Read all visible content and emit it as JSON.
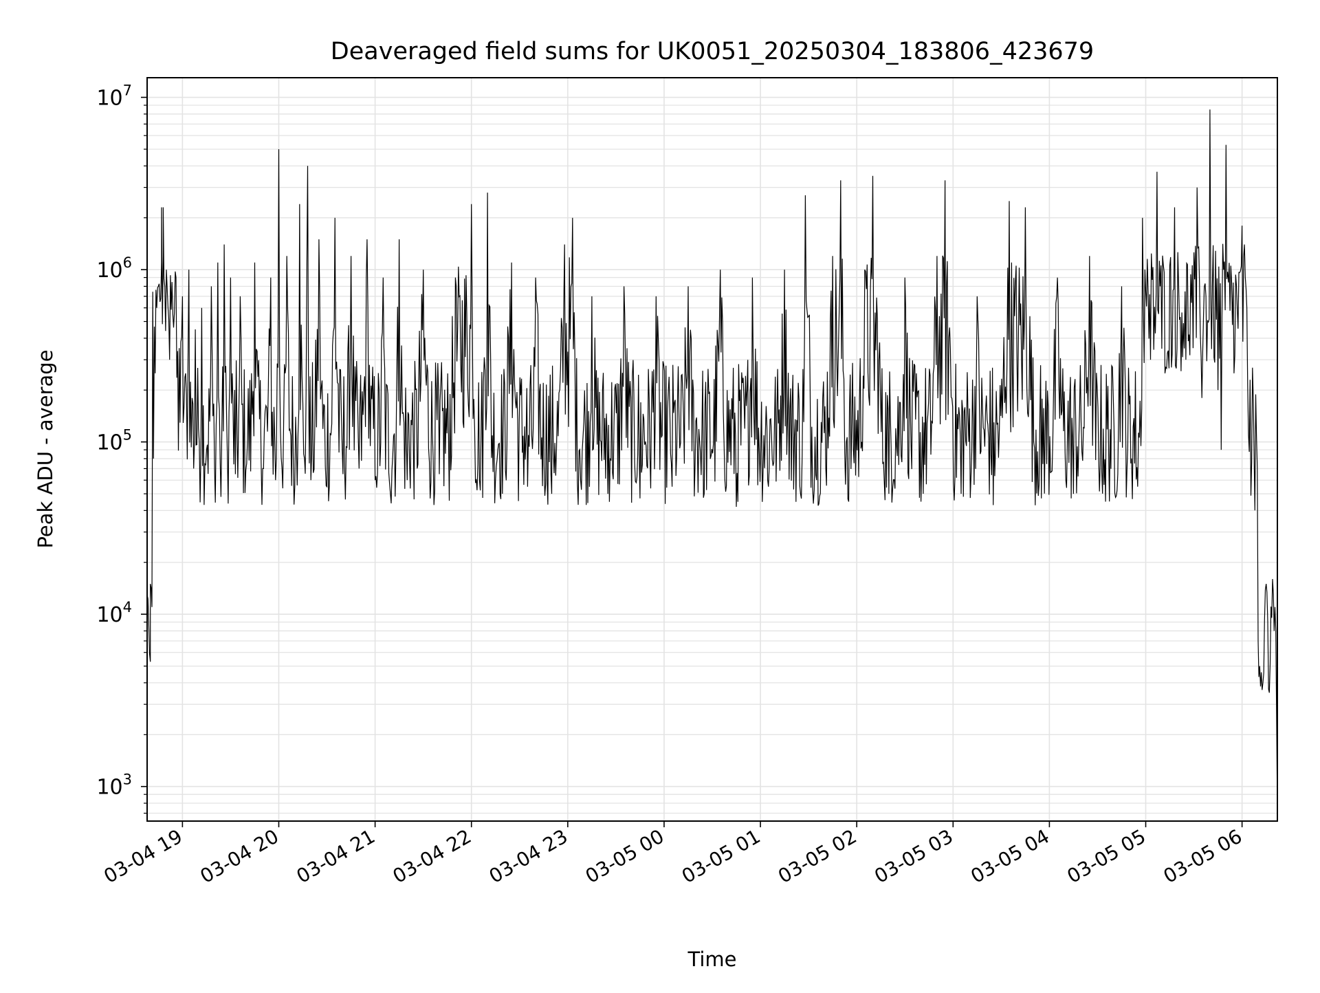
{
  "chart_data": {
    "type": "line",
    "title": "Deaveraged field sums for UK0051_20250304_183806_423679",
    "xlabel": "Time",
    "ylabel": "Peak ADU - average",
    "yscale": "log",
    "ylim": [
      630,
      13000000
    ],
    "xlim": [
      "2025-03-04 18:38",
      "2025-03-05 06:22"
    ],
    "grid": true,
    "legend": "none",
    "line_color": "#000000",
    "grid_color": "#e3e3e3",
    "x_ticks": [
      {
        "t": "2025-03-04 19:00",
        "label": "03-04 19"
      },
      {
        "t": "2025-03-04 20:00",
        "label": "03-04 20"
      },
      {
        "t": "2025-03-04 21:00",
        "label": "03-04 21"
      },
      {
        "t": "2025-03-04 22:00",
        "label": "03-04 22"
      },
      {
        "t": "2025-03-04 23:00",
        "label": "03-04 23"
      },
      {
        "t": "2025-03-05 00:00",
        "label": "03-05 00"
      },
      {
        "t": "2025-03-05 01:00",
        "label": "03-05 01"
      },
      {
        "t": "2025-03-05 02:00",
        "label": "03-05 02"
      },
      {
        "t": "2025-03-05 03:00",
        "label": "03-05 03"
      },
      {
        "t": "2025-03-05 04:00",
        "label": "03-05 04"
      },
      {
        "t": "2025-03-05 05:00",
        "label": "03-05 05"
      },
      {
        "t": "2025-03-05 06:00",
        "label": "03-05 06"
      }
    ],
    "y_ticks": [
      {
        "value": 1000,
        "label": "10",
        "exp": "3"
      },
      {
        "value": 10000,
        "label": "10",
        "exp": "4"
      },
      {
        "value": 100000,
        "label": "10",
        "exp": "5"
      },
      {
        "value": 1000000,
        "label": "10",
        "exp": "6"
      },
      {
        "value": 10000000,
        "label": "10",
        "exp": "7"
      }
    ],
    "series": [
      {
        "values": [
          [
            "2025-03-04 18:38",
            13000
          ],
          [
            "2025-03-04 18:39",
            9000
          ],
          [
            "2025-03-04 18:40",
            5300
          ],
          [
            "2025-03-04 18:40",
            15000
          ],
          [
            "2025-03-04 18:41",
            11000
          ],
          [
            "2025-03-04 18:42",
            80000
          ],
          [
            "2025-03-04 18:43",
            250000
          ],
          [
            "2025-03-04 18:44",
            600000
          ],
          [
            "2025-03-04 18:45",
            800000
          ],
          [
            "2025-03-04 18:46",
            650000
          ],
          [
            "2025-03-04 18:47",
            1100000
          ],
          [
            "2025-03-04 18:47",
            2300000
          ],
          [
            "2025-03-04 18:48",
            1200000
          ],
          [
            "2025-03-04 18:48",
            2300000
          ],
          [
            "2025-03-04 18:49",
            800000
          ],
          [
            "2025-03-04 18:50",
            1000000
          ],
          [
            "2025-03-04 18:51",
            600000
          ],
          [
            "2025-03-04 18:52",
            300000
          ],
          [
            "2025-03-04 18:54",
            550000
          ],
          [
            "2025-03-04 18:56",
            900000
          ],
          [
            "2025-03-04 18:58",
            350000
          ],
          [
            "2025-03-04 19:00",
            700000
          ],
          [
            "2025-03-04 19:02",
            250000
          ],
          [
            "2025-03-04 19:04",
            1000000
          ],
          [
            "2025-03-04 19:06",
            180000
          ],
          [
            "2025-03-04 19:08",
            450000
          ],
          [
            "2025-03-04 19:10",
            120000
          ],
          [
            "2025-03-04 19:12",
            600000
          ],
          [
            "2025-03-04 19:15",
            90000
          ],
          [
            "2025-03-04 19:18",
            800000
          ],
          [
            "2025-03-04 19:20",
            70000
          ],
          [
            "2025-03-04 19:22",
            1100000
          ],
          [
            "2025-03-04 19:24",
            48000
          ],
          [
            "2025-03-04 19:26",
            1400000
          ],
          [
            "2025-03-04 19:28",
            80000
          ],
          [
            "2025-03-04 19:30",
            900000
          ],
          [
            "2025-03-04 19:33",
            65000
          ],
          [
            "2025-03-04 19:36",
            700000
          ],
          [
            "2025-03-04 19:40",
            75000
          ],
          [
            "2025-03-04 19:45",
            1100000
          ],
          [
            "2025-03-04 19:50",
            70000
          ],
          [
            "2025-03-04 19:55",
            900000
          ],
          [
            "2025-03-04 19:58",
            60000
          ],
          [
            "2025-03-04 20:00",
            5000000
          ],
          [
            "2025-03-04 20:02",
            70000
          ],
          [
            "2025-03-04 20:05",
            1200000
          ],
          [
            "2025-03-04 20:10",
            55000
          ],
          [
            "2025-03-04 20:13",
            2400000
          ],
          [
            "2025-03-04 20:16",
            80000
          ],
          [
            "2025-03-04 20:18",
            4000000
          ],
          [
            "2025-03-04 20:20",
            60000
          ],
          [
            "2025-03-04 20:25",
            1500000
          ],
          [
            "2025-03-04 20:30",
            55000
          ],
          [
            "2025-03-04 20:35",
            2000000
          ],
          [
            "2025-03-04 20:40",
            65000
          ],
          [
            "2025-03-04 20:45",
            1200000
          ],
          [
            "2025-03-04 20:50",
            70000
          ],
          [
            "2025-03-04 20:55",
            1500000
          ],
          [
            "2025-03-04 21:00",
            60000
          ],
          [
            "2025-03-04 21:05",
            900000
          ],
          [
            "2025-03-04 21:10",
            44000
          ],
          [
            "2025-03-04 21:15",
            1500000
          ],
          [
            "2025-03-04 21:20",
            60000
          ],
          [
            "2025-03-04 21:30",
            1000000
          ],
          [
            "2025-03-04 21:40",
            65000
          ],
          [
            "2025-03-04 21:50",
            900000
          ],
          [
            "2025-03-04 22:00",
            2400000
          ],
          [
            "2025-03-04 22:05",
            60000
          ],
          [
            "2025-03-04 22:10",
            2800000
          ],
          [
            "2025-03-04 22:15",
            60000
          ],
          [
            "2025-03-04 22:25",
            1100000
          ],
          [
            "2025-03-04 22:35",
            55000
          ],
          [
            "2025-03-04 22:40",
            900000
          ],
          [
            "2025-03-04 22:50",
            50000
          ],
          [
            "2025-03-04 22:58",
            1400000
          ],
          [
            "2025-03-04 23:03",
            2000000
          ],
          [
            "2025-03-04 23:08",
            60000
          ],
          [
            "2025-03-04 23:15",
            700000
          ],
          [
            "2025-03-04 23:25",
            50000
          ],
          [
            "2025-03-04 23:35",
            800000
          ],
          [
            "2025-03-04 23:45",
            47000
          ],
          [
            "2025-03-04 23:55",
            700000
          ],
          [
            "2025-03-05 00:05",
            55000
          ],
          [
            "2025-03-05 00:15",
            800000
          ],
          [
            "2025-03-05 00:25",
            50000
          ],
          [
            "2025-03-05 00:35",
            1000000
          ],
          [
            "2025-03-05 00:45",
            42000
          ],
          [
            "2025-03-05 00:55",
            900000
          ],
          [
            "2025-03-05 01:05",
            55000
          ],
          [
            "2025-03-05 01:15",
            1000000
          ],
          [
            "2025-03-05 01:25",
            50000
          ],
          [
            "2025-03-05 01:28",
            2700000
          ],
          [
            "2025-03-05 01:35",
            60000
          ],
          [
            "2025-03-05 01:45",
            1200000
          ],
          [
            "2025-03-05 01:50",
            3300000
          ],
          [
            "2025-03-05 01:55",
            45000
          ],
          [
            "2025-03-05 02:05",
            1000000
          ],
          [
            "2025-03-05 02:10",
            3500000
          ],
          [
            "2025-03-05 02:20",
            50000
          ],
          [
            "2025-03-05 02:30",
            900000
          ],
          [
            "2025-03-05 02:40",
            45000
          ],
          [
            "2025-03-05 02:50",
            1200000
          ],
          [
            "2025-03-05 02:55",
            3300000
          ],
          [
            "2025-03-05 03:05",
            50000
          ],
          [
            "2025-03-05 03:15",
            700000
          ],
          [
            "2025-03-05 03:25",
            43000
          ],
          [
            "2025-03-05 03:35",
            2500000
          ],
          [
            "2025-03-05 03:45",
            2300000
          ],
          [
            "2025-03-05 03:55",
            47000
          ],
          [
            "2025-03-05 04:05",
            900000
          ],
          [
            "2025-03-05 04:15",
            50000
          ],
          [
            "2025-03-05 04:25",
            1200000
          ],
          [
            "2025-03-05 04:35",
            45000
          ],
          [
            "2025-03-05 04:45",
            800000
          ],
          [
            "2025-03-05 04:55",
            55000
          ],
          [
            "2025-03-05 04:58",
            2000000
          ],
          [
            "2025-03-05 05:03",
            300000
          ],
          [
            "2025-03-05 05:07",
            3700000
          ],
          [
            "2025-03-05 05:12",
            250000
          ],
          [
            "2025-03-05 05:18",
            2300000
          ],
          [
            "2025-03-05 05:25",
            300000
          ],
          [
            "2025-03-05 05:32",
            3000000
          ],
          [
            "2025-03-05 05:35",
            180000
          ],
          [
            "2025-03-05 05:40",
            8500000
          ],
          [
            "2025-03-05 05:45",
            200000
          ],
          [
            "2025-03-05 05:47",
            90000
          ],
          [
            "2025-03-05 05:50",
            5300000
          ],
          [
            "2025-03-05 05:55",
            250000
          ],
          [
            "2025-03-05 06:00",
            1800000
          ],
          [
            "2025-03-05 06:03",
            600000
          ],
          [
            "2025-03-05 06:04",
            110000
          ],
          [
            "2025-03-05 06:08",
            40000
          ],
          [
            "2025-03-05 06:10",
            7000
          ],
          [
            "2025-03-05 06:13",
            4000
          ],
          [
            "2025-03-05 06:15",
            15000
          ],
          [
            "2025-03-05 06:17",
            3500
          ],
          [
            "2025-03-05 06:19",
            16000
          ],
          [
            "2025-03-05 06:21",
            8000
          ],
          [
            "2025-03-05 06:22",
            700
          ]
        ]
      }
    ]
  }
}
